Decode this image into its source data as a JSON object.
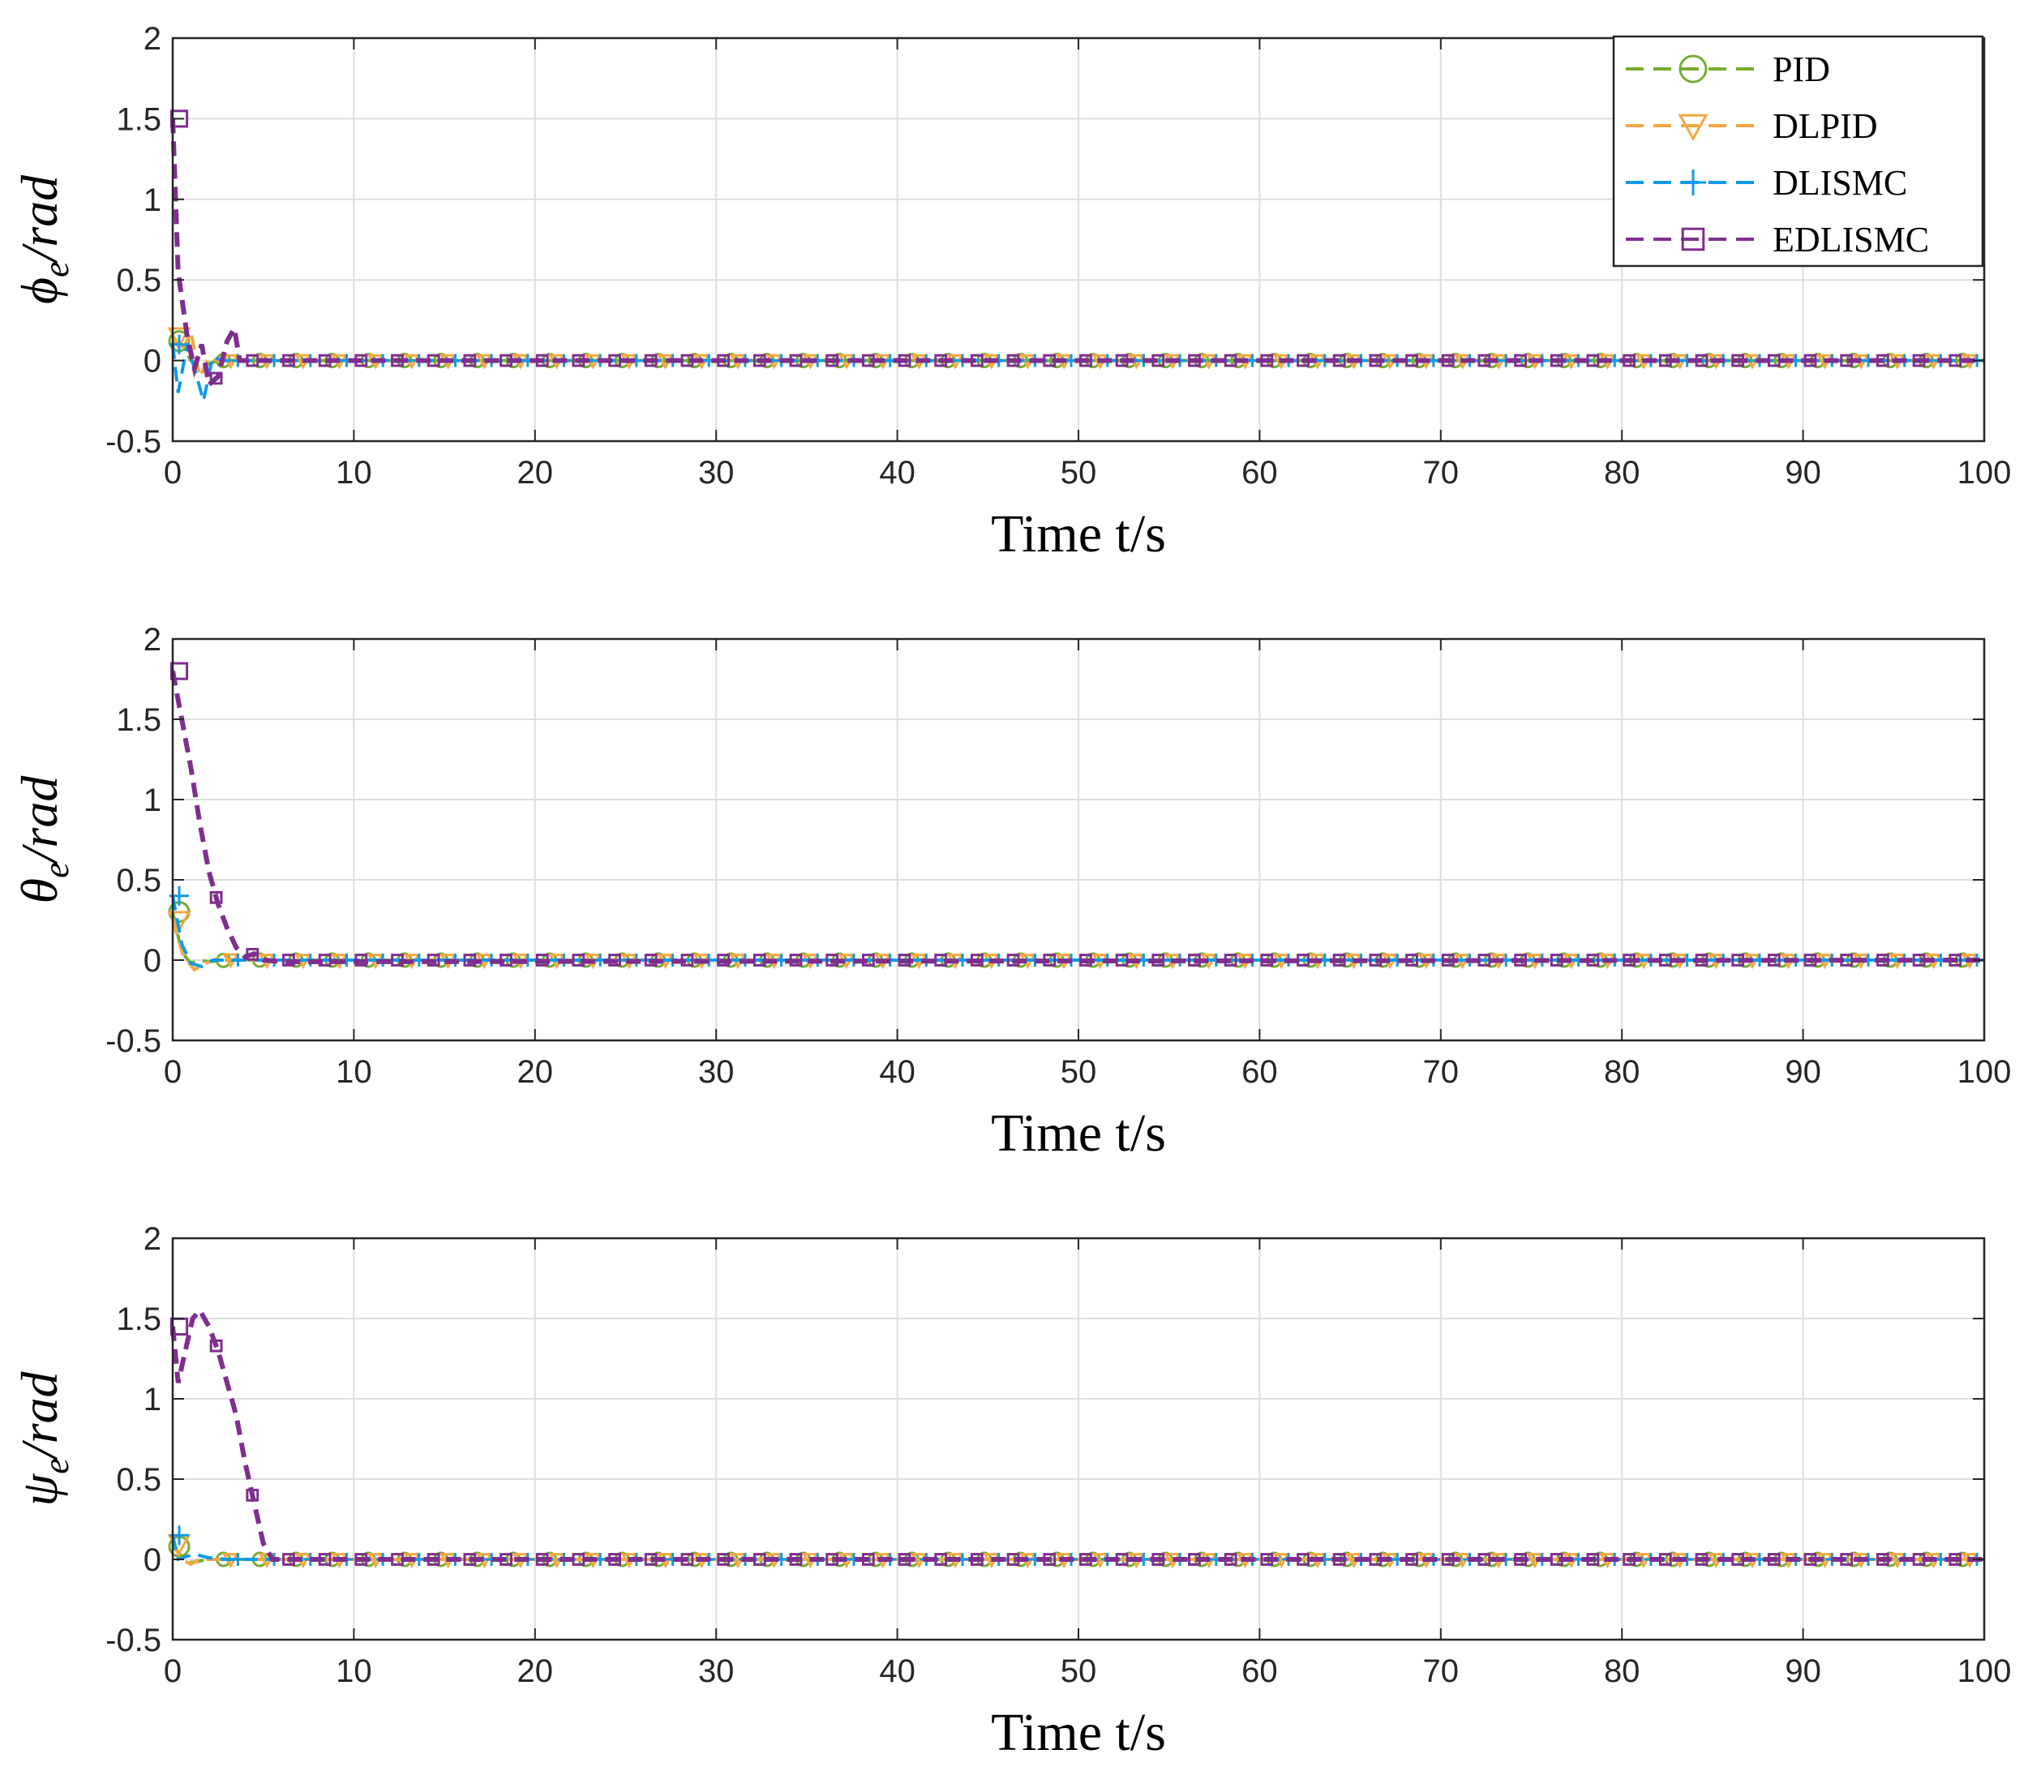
{
  "legend": {
    "entries": [
      {
        "label": "PID",
        "color": "#77AC30",
        "marker": "circle"
      },
      {
        "label": "DLPID",
        "color": "#F5A742",
        "marker": "triangle-down"
      },
      {
        "label": "DLISMC",
        "color": "#0F9AE8",
        "marker": "plus"
      },
      {
        "label": "EDLISMC",
        "color": "#7E2F8E",
        "marker": "square"
      }
    ]
  },
  "chart_data": [
    {
      "type": "line",
      "title": "",
      "xlabel": "Time t/s",
      "ylabel_symbol": "ϕ",
      "ylabel_sub": "e",
      "ylabel_rest": "/rad",
      "xlim": [
        0,
        100
      ],
      "ylim": [
        -0.5,
        2
      ],
      "xticks": [
        "0",
        "10",
        "20",
        "30",
        "40",
        "50",
        "60",
        "70",
        "80",
        "90",
        "100"
      ],
      "yticks": [
        "-0.5",
        "0",
        "0.5",
        "1",
        "1.5",
        "2"
      ],
      "grid": true,
      "legend_position": "top-right",
      "series": [
        {
          "name": "PID",
          "x": [
            0,
            0.5,
            1,
            1.5,
            2,
            2.5,
            3,
            100
          ],
          "y": [
            0.12,
            0.1,
            0.0,
            -0.05,
            -0.02,
            0.0,
            0.0,
            0.0
          ]
        },
        {
          "name": "DLPID",
          "x": [
            0,
            0.5,
            1,
            1.5,
            2,
            2.5,
            3,
            100
          ],
          "y": [
            0.15,
            0.05,
            0.18,
            -0.1,
            0.02,
            0.0,
            0.0,
            0.0
          ]
        },
        {
          "name": "DLISMC",
          "x": [
            0,
            0.3,
            0.8,
            1.2,
            1.7,
            2.2,
            2.8,
            100
          ],
          "y": [
            0.1,
            -0.2,
            0.1,
            -0.05,
            -0.25,
            0.02,
            0.0,
            0.0
          ]
        },
        {
          "name": "EDLISMC",
          "x": [
            0,
            0.3,
            0.8,
            1.2,
            1.6,
            2.0,
            2.5,
            3.0,
            3.4,
            3.7,
            100
          ],
          "y": [
            1.5,
            0.55,
            0.15,
            -0.05,
            0.1,
            -0.15,
            -0.1,
            0.12,
            0.2,
            0.0,
            0.0
          ]
        }
      ]
    },
    {
      "type": "line",
      "title": "",
      "xlabel": "Time t/s",
      "ylabel_symbol": "θ",
      "ylabel_sub": "e",
      "ylabel_rest": "/rad",
      "xlim": [
        0,
        100
      ],
      "ylim": [
        -0.5,
        2
      ],
      "xticks": [
        "0",
        "10",
        "20",
        "30",
        "40",
        "50",
        "60",
        "70",
        "80",
        "90",
        "100"
      ],
      "yticks": [
        "-0.5",
        "0",
        "0.5",
        "1",
        "1.5",
        "2"
      ],
      "grid": true,
      "series": [
        {
          "name": "PID",
          "x": [
            0,
            0.5,
            1,
            1.5,
            2,
            3,
            100
          ],
          "y": [
            0.3,
            0.05,
            -0.02,
            0.0,
            -0.01,
            0.0,
            0.0
          ]
        },
        {
          "name": "DLPID",
          "x": [
            0,
            0.6,
            1.2,
            1.8,
            2.5,
            3.5,
            100
          ],
          "y": [
            0.25,
            0.02,
            -0.06,
            -0.02,
            0.01,
            0.0,
            0.0
          ]
        },
        {
          "name": "DLISMC",
          "x": [
            0,
            0.5,
            1,
            1.6,
            2.2,
            3,
            100
          ],
          "y": [
            0.4,
            0.1,
            -0.02,
            -0.04,
            0.0,
            0.0,
            0.0
          ]
        },
        {
          "name": "EDLISMC",
          "x": [
            0,
            0.5,
            1,
            1.5,
            2,
            2.5,
            3,
            3.5,
            4,
            4.5,
            5,
            6,
            100
          ],
          "y": [
            1.8,
            1.5,
            1.2,
            0.85,
            0.55,
            0.35,
            0.2,
            0.08,
            0.02,
            0.04,
            0.0,
            -0.01,
            0.0
          ]
        }
      ]
    },
    {
      "type": "line",
      "title": "",
      "xlabel": "Time t/s",
      "ylabel_symbol": "ψ",
      "ylabel_sub": "e",
      "ylabel_rest": "/rad",
      "xlim": [
        0,
        100
      ],
      "ylim": [
        -0.5,
        2
      ],
      "xticks": [
        "0",
        "10",
        "20",
        "30",
        "40",
        "50",
        "60",
        "70",
        "80",
        "90",
        "100"
      ],
      "yticks": [
        "-0.5",
        "0",
        "0.5",
        "1",
        "1.5",
        "2"
      ],
      "grid": true,
      "series": [
        {
          "name": "PID",
          "x": [
            0,
            0.5,
            1,
            1.5,
            2,
            3,
            100
          ],
          "y": [
            0.08,
            0.02,
            -0.02,
            -0.01,
            0.0,
            0.0,
            0.0
          ]
        },
        {
          "name": "DLPID",
          "x": [
            0,
            0.5,
            1,
            1.5,
            2.5,
            100
          ],
          "y": [
            0.1,
            0.0,
            -0.03,
            0.0,
            0.0,
            0.0
          ]
        },
        {
          "name": "DLISMC",
          "x": [
            0,
            0.3,
            0.8,
            1.3,
            2,
            3,
            100
          ],
          "y": [
            0.15,
            0.0,
            0.02,
            0.03,
            0.01,
            0.0,
            0.0
          ]
        },
        {
          "name": "EDLISMC",
          "x": [
            0,
            0.3,
            0.7,
            1.1,
            1.5,
            2.0,
            2.5,
            3.0,
            3.5,
            4.0,
            4.5,
            5.0,
            5.5,
            100
          ],
          "y": [
            1.45,
            1.1,
            1.3,
            1.5,
            1.55,
            1.45,
            1.3,
            1.1,
            0.9,
            0.6,
            0.35,
            0.1,
            0.0,
            0.0
          ]
        }
      ]
    }
  ]
}
